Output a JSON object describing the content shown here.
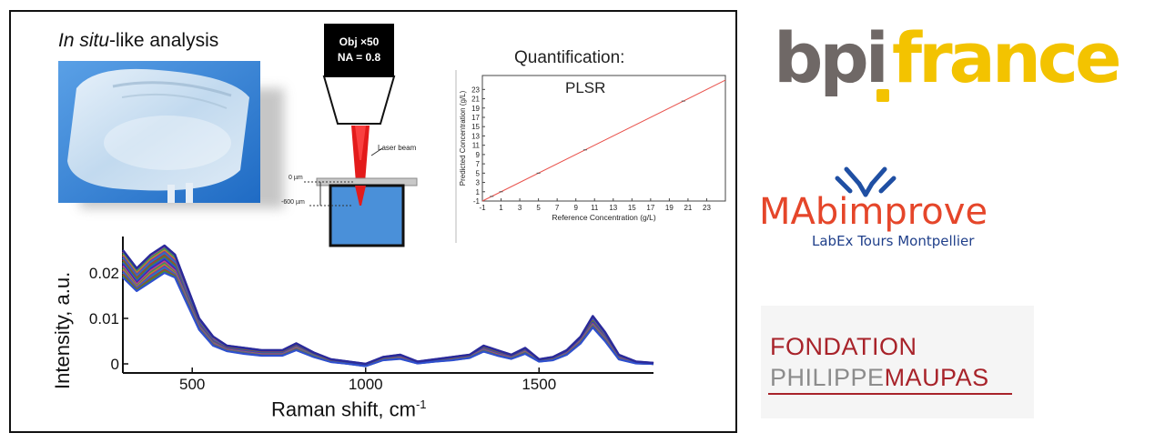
{
  "figure": {
    "insitu_title_italic": "In situ",
    "insitu_title_rest": "-like analysis",
    "objective_line1": "Obj ×50",
    "objective_line2": "NA = 0.8",
    "laser_label": "Laser beam",
    "depth_top_label": "0 µm",
    "depth_bottom_label": "-600 µm",
    "quant_title": "Quantification:",
    "plsr_label": "PLSR",
    "bag_text": "",
    "colors": {
      "laser": "#e31b1b",
      "liquid": "#4a90d9",
      "frame": "#111111",
      "regression_line": "#e8504a"
    }
  },
  "chart_data": [
    {
      "type": "scatter",
      "title": "PLSR",
      "xlabel": "Reference Concentration (g/L)",
      "ylabel": "Predicted Concentration (g/L)",
      "xlim": [
        -1,
        25
      ],
      "ylim": [
        -1,
        26
      ],
      "x_ticks": [
        "-1",
        "1",
        "3",
        "5",
        "7",
        "9",
        "11",
        "13",
        "15",
        "17",
        "19",
        "21",
        "23"
      ],
      "y_ticks": [
        "-1",
        "1",
        "3",
        "5",
        "7",
        "9",
        "11",
        "13",
        "15",
        "17",
        "19",
        "21",
        "23"
      ],
      "points": [
        [
          0,
          0
        ],
        [
          1,
          1
        ],
        [
          5,
          5
        ],
        [
          10,
          10
        ],
        [
          20.5,
          20.5
        ]
      ],
      "fit_line": [
        [
          -1,
          -1
        ],
        [
          25,
          25
        ]
      ],
      "grid": false
    },
    {
      "type": "line",
      "xlabel_main": "Raman shift, cm",
      "xlabel_sup": "-1",
      "ylabel": "Intensity, a.u.",
      "xlim": [
        300,
        1830
      ],
      "ylim": [
        -0.002,
        0.028
      ],
      "x_ticks": [
        "500",
        "1000",
        "1500"
      ],
      "y_ticks": [
        "0",
        "0.01",
        "0.02"
      ],
      "x": [
        300,
        340,
        380,
        420,
        450,
        480,
        520,
        560,
        600,
        650,
        700,
        760,
        800,
        850,
        900,
        950,
        1000,
        1050,
        1100,
        1150,
        1200,
        1250,
        1300,
        1340,
        1380,
        1420,
        1460,
        1500,
        1540,
        1580,
        1620,
        1655,
        1690,
        1730,
        1780,
        1830
      ],
      "series": [
        {
          "values": [
            0.025,
            0.021,
            0.024,
            0.026,
            0.024,
            0.018,
            0.01,
            0.006,
            0.004,
            0.0035,
            0.003,
            0.003,
            0.0045,
            0.0025,
            0.001,
            0.0005,
            0.0,
            0.0015,
            0.002,
            0.0005,
            0.001,
            0.0015,
            0.002,
            0.004,
            0.003,
            0.002,
            0.0035,
            0.001,
            0.0015,
            0.003,
            0.006,
            0.0105,
            0.007,
            0.002,
            0.0005,
            0.0002
          ]
        },
        {
          "values": [
            0.023,
            0.019,
            0.022,
            0.024,
            0.022,
            0.016,
            0.009,
            0.005,
            0.0035,
            0.003,
            0.0025,
            0.0025,
            0.004,
            0.002,
            0.0008,
            0.0003,
            -0.0002,
            0.0012,
            0.0016,
            0.0003,
            0.0008,
            0.0012,
            0.0018,
            0.0035,
            0.0025,
            0.0016,
            0.003,
            0.0008,
            0.0012,
            0.0026,
            0.0055,
            0.0095,
            0.006,
            0.0015,
            0.0003,
            0.0001
          ]
        },
        {
          "values": [
            0.021,
            0.017,
            0.02,
            0.022,
            0.02,
            0.015,
            0.008,
            0.0045,
            0.003,
            0.0025,
            0.002,
            0.002,
            0.0035,
            0.0018,
            0.0006,
            0.0001,
            -0.0004,
            0.001,
            0.0013,
            0.0002,
            0.0006,
            0.001,
            0.0015,
            0.003,
            0.002,
            0.0013,
            0.0026,
            0.0006,
            0.001,
            0.0022,
            0.005,
            0.0085,
            0.0055,
            0.0012,
            0.0002,
            0.0
          ]
        },
        {
          "values": [
            0.019,
            0.016,
            0.018,
            0.02,
            0.019,
            0.014,
            0.0075,
            0.004,
            0.0028,
            0.0022,
            0.0018,
            0.0018,
            0.003,
            0.0015,
            0.0004,
            0.0,
            -0.0005,
            0.0008,
            0.0011,
            0.0001,
            0.0005,
            0.0008,
            0.0013,
            0.0027,
            0.0018,
            0.0011,
            0.0022,
            0.0005,
            0.0008,
            0.002,
            0.0045,
            0.008,
            0.005,
            0.001,
            0.0001,
            0.0
          ]
        }
      ],
      "grid": false
    }
  ],
  "logos": {
    "bpi_part1": "bpi",
    "bpi_part2": "france",
    "mabimprove_name": "MAbimprove",
    "mabimprove_sub": "LabEx Tours Montpellier",
    "fondation_line1": "FONDATION",
    "fondation_line2_a": "PHILIPPE",
    "fondation_line2_b": "MAUPAS",
    "colors": {
      "bpi_grey": "#6f6866",
      "bpi_yellow": "#f3c300",
      "fondation_red": "#a8232a",
      "fondation_grey": "#8c8c8c"
    }
  }
}
